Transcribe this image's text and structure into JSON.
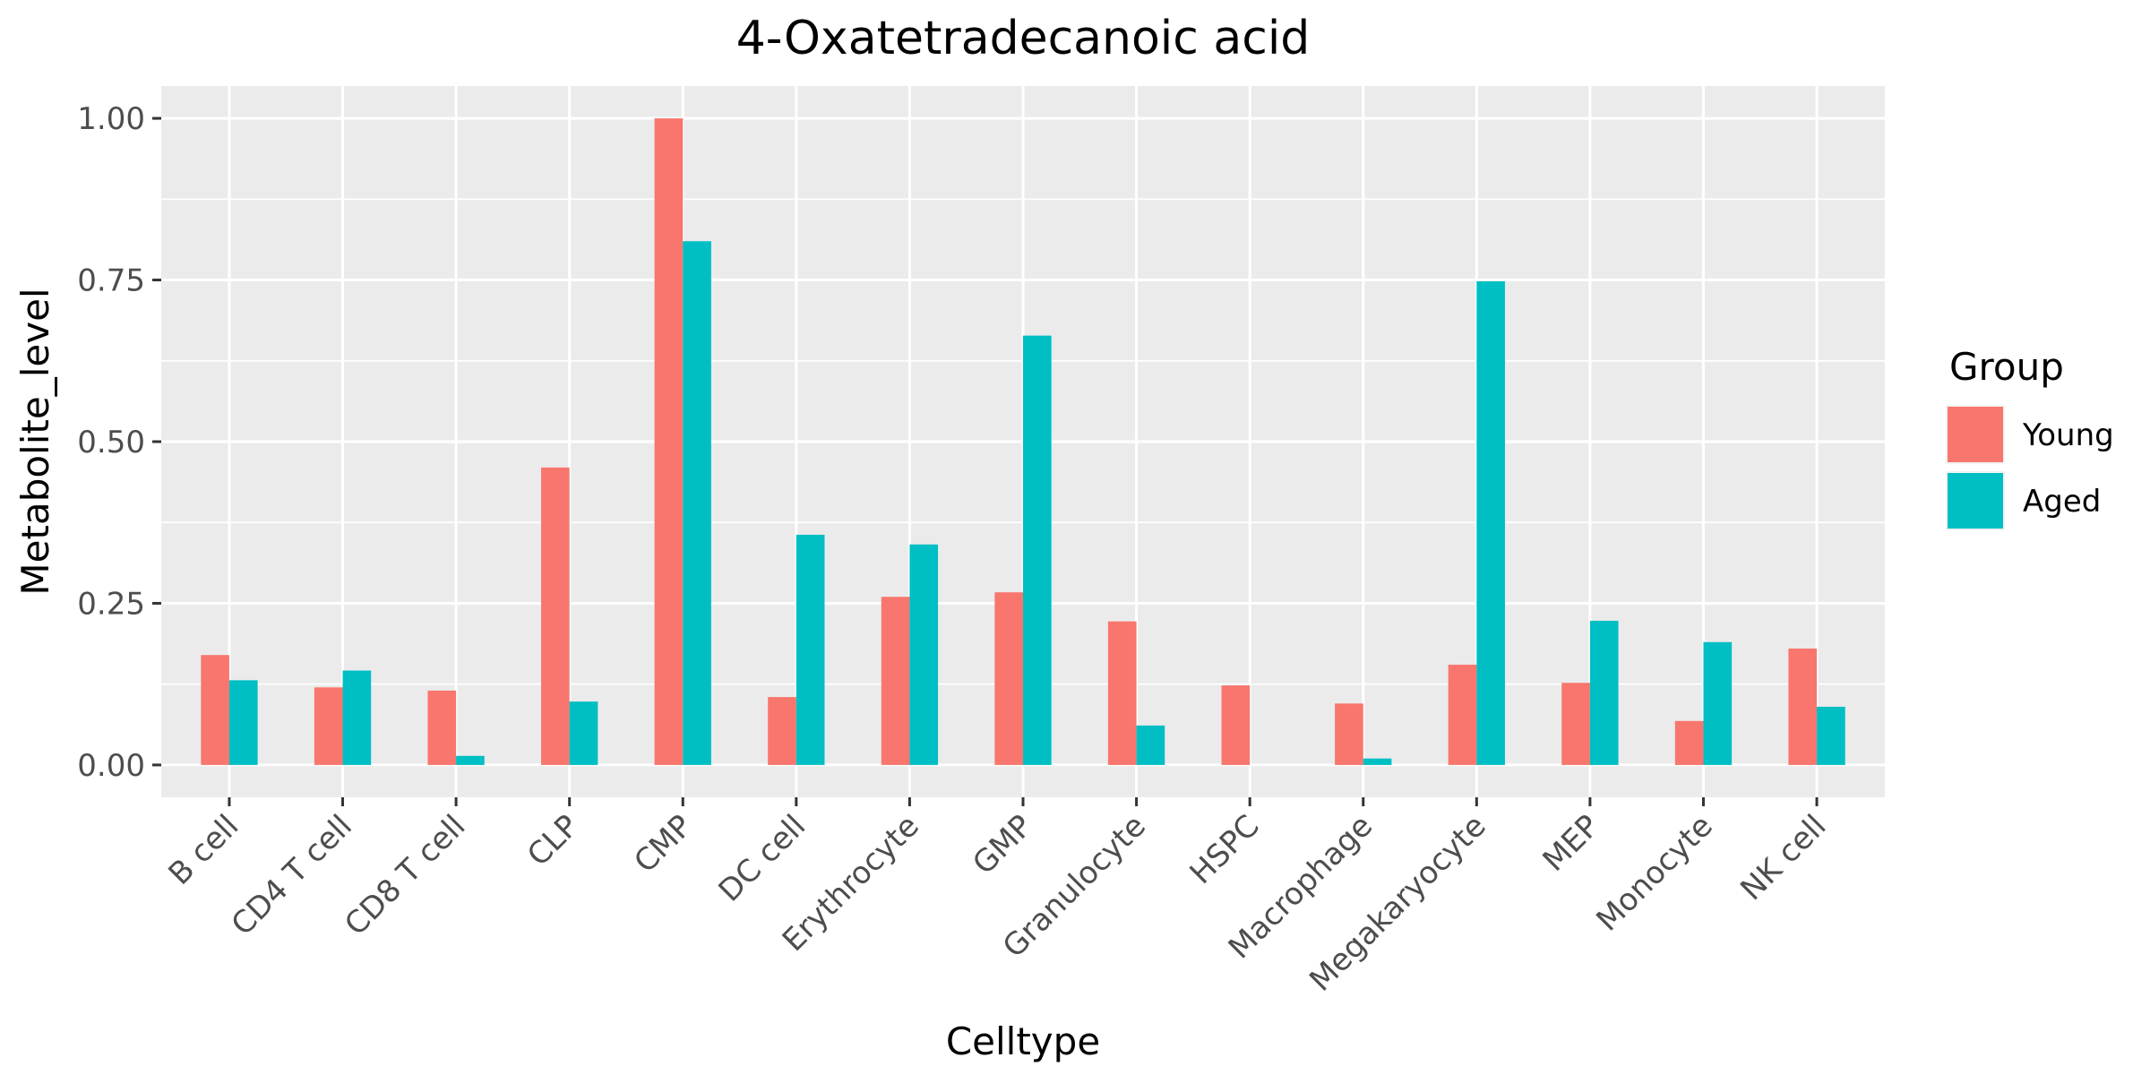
{
  "chart_data": {
    "type": "bar",
    "title": "4-Oxatetradecanoic acid",
    "xlabel": "Celltype",
    "ylabel": "Metabolite_level",
    "ylim": [
      -0.05,
      1.05
    ],
    "yticks": [
      0.0,
      0.25,
      0.5,
      0.75,
      1.0
    ],
    "ytick_labels": [
      "0.00",
      "0.25",
      "0.50",
      "0.75",
      "1.00"
    ],
    "grid": true,
    "legend": {
      "title": "Group",
      "position": "right"
    },
    "categories": [
      "B cell",
      "CD4 T cell",
      "CD8 T cell",
      "CLP",
      "CMP",
      "DC cell",
      "Erythrocyte",
      "GMP",
      "Granulocyte",
      "HSPC",
      "Macrophage",
      "Megakaryocyte",
      "MEP",
      "Monocyte",
      "NK cell"
    ],
    "series": [
      {
        "name": "Young",
        "color": "#F8766D",
        "values": [
          0.17,
          0.12,
          0.115,
          0.46,
          1.0,
          0.105,
          0.26,
          0.267,
          0.222,
          0.123,
          0.095,
          0.155,
          0.127,
          0.068,
          0.18
        ]
      },
      {
        "name": "Aged",
        "color": "#00BFC4",
        "values": [
          0.131,
          0.146,
          0.014,
          0.098,
          0.81,
          0.356,
          0.341,
          0.664,
          0.061,
          0.0,
          0.01,
          0.748,
          0.223,
          0.19,
          0.09
        ]
      }
    ]
  }
}
